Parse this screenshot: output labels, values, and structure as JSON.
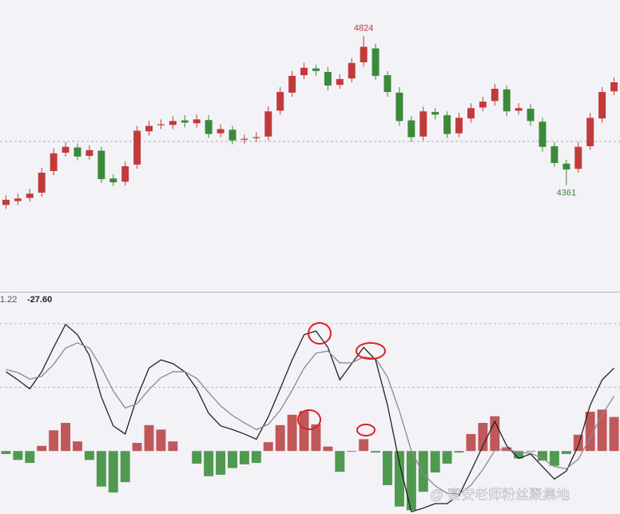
{
  "chart_data": [
    {
      "type": "candlestick",
      "up_color": "#c23a3a",
      "down_color": "#3a8a3a",
      "open": [
        4300,
        4312,
        4322,
        4338,
        4405,
        4462,
        4478,
        4452,
        4468,
        4382,
        4372,
        4425,
        4528,
        4547,
        4548,
        4562,
        4553,
        4563,
        4522,
        4533,
        4502,
        4507,
        4512,
        4592,
        4648,
        4702,
        4723,
        4712,
        4672,
        4692,
        4742,
        4785,
        4702,
        4648,
        4562,
        4512,
        4588,
        4578,
        4522,
        4568,
        4602,
        4622,
        4658,
        4592,
        4598,
        4558,
        4482,
        4428,
        4412,
        4482,
        4568,
        4652
      ],
      "high": [
        4330,
        4335,
        4350,
        4415,
        4475,
        4495,
        4490,
        4485,
        4480,
        4395,
        4435,
        4545,
        4560,
        4565,
        4575,
        4578,
        4580,
        4578,
        4550,
        4545,
        4518,
        4525,
        4605,
        4665,
        4715,
        4740,
        4735,
        4728,
        4705,
        4755,
        4824,
        4800,
        4715,
        4665,
        4575,
        4605,
        4600,
        4590,
        4585,
        4615,
        4635,
        4675,
        4670,
        4615,
        4612,
        4570,
        4495,
        4440,
        4495,
        4585,
        4665,
        4695
      ],
      "low": [
        4288,
        4300,
        4310,
        4325,
        4392,
        4450,
        4438,
        4440,
        4368,
        4358,
        4360,
        4412,
        4515,
        4535,
        4535,
        4540,
        4540,
        4508,
        4510,
        4488,
        4490,
        4495,
        4500,
        4580,
        4635,
        4690,
        4700,
        4655,
        4660,
        4680,
        4728,
        4688,
        4635,
        4545,
        4495,
        4500,
        4565,
        4508,
        4510,
        4555,
        4590,
        4608,
        4575,
        4580,
        4545,
        4465,
        4418,
        4361,
        4400,
        4470,
        4555,
        4640
      ],
      "close": [
        4316,
        4320,
        4335,
        4400,
        4460,
        4480,
        4450,
        4470,
        4380,
        4370,
        4420,
        4530,
        4545,
        4550,
        4560,
        4555,
        4565,
        4520,
        4535,
        4500,
        4505,
        4510,
        4590,
        4650,
        4700,
        4725,
        4715,
        4670,
        4690,
        4740,
        4790,
        4700,
        4650,
        4560,
        4510,
        4590,
        4580,
        4520,
        4570,
        4600,
        4620,
        4660,
        4590,
        4600,
        4560,
        4480,
        4430,
        4410,
        4480,
        4570,
        4650,
        4680
      ],
      "annotations": [
        4824,
        4361
      ],
      "ref_lines": [
        4497
      ],
      "ylim": [
        4031,
        4935
      ]
    },
    {
      "type": "macd",
      "header_values": [
        1.22,
        {
          "value": -27.6,
          "label": "-27.60"
        }
      ],
      "series": [
        {
          "name": "DIF",
          "color": "#222222",
          "values": [
            107,
            96,
            84,
            107,
            140,
            171,
            157,
            129,
            73,
            34,
            23,
            73,
            112,
            123,
            118,
            107,
            84,
            51,
            34,
            29,
            23,
            16,
            46,
            84,
            123,
            157,
            162,
            140,
            96,
            118,
            140,
            123,
            62,
            -16,
            -82,
            -77,
            -71,
            -71,
            -60,
            -27,
            7,
            40,
            7,
            -10,
            -4,
            -21,
            -38,
            -27,
            7,
            62,
            96,
            112
          ]
        },
        {
          "name": "DEA",
          "color": "#8a8a8a",
          "values": [
            110,
            106,
            97,
            101,
            117,
            139,
            146,
            139,
            113,
            81,
            58,
            64,
            83,
            99,
            107,
            107,
            98,
            79,
            61,
            48,
            38,
            29,
            36,
            55,
            82,
            112,
            132,
            135,
            119,
            119,
            127,
            125,
            100,
            54,
            0,
            -31,
            -47,
            -57,
            -58,
            -46,
            -25,
            1,
            3,
            -2,
            -3,
            -10,
            -21,
            -24,
            -11,
            18,
            49,
            74
          ]
        }
      ],
      "histogram": {
        "up_color": "#c0585a",
        "down_color": "#4f9a4f",
        "values": [
          -4,
          -12,
          -16,
          7,
          28,
          38,
          13,
          -12,
          -48,
          -56,
          -42,
          11,
          35,
          29,
          13,
          0,
          -17,
          -34,
          -32,
          -23,
          -18,
          -16,
          12,
          35,
          49,
          54,
          36,
          6,
          -28,
          -1,
          16,
          -2,
          -46,
          -75,
          -80,
          -55,
          -29,
          -17,
          -2,
          23,
          38,
          47,
          5,
          -10,
          -1,
          -13,
          -20,
          -4,
          22,
          53,
          56,
          46
        ]
      },
      "ref_lines": [
        172,
        86
      ],
      "ylim": [
        -85,
        215
      ]
    }
  ],
  "watermark": "@ 宴安老师粉丝聚集地"
}
